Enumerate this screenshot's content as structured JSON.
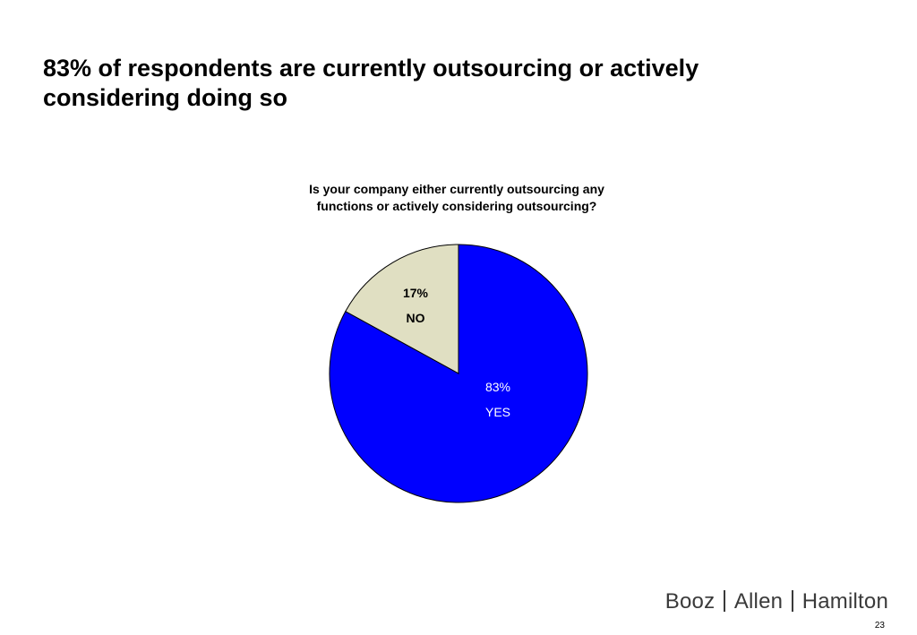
{
  "slide": {
    "title": "83% of respondents are currently outsourcing or actively considering doing so",
    "page_number": "23"
  },
  "logo": {
    "parts": [
      "Booz",
      "Allen",
      "Hamilton"
    ]
  },
  "chart_data": {
    "type": "pie",
    "title": "Is your company either currently outsourcing any\nfunctions or actively considering outsourcing?",
    "slices": [
      {
        "label": "YES",
        "value": 83,
        "display": "83%",
        "color": "#0000FF",
        "label_color": "#FFFFFF"
      },
      {
        "label": "NO",
        "value": 17,
        "display": "17%",
        "color": "#E0DFC2",
        "label_color": "#000000"
      }
    ],
    "start": "12 o'clock",
    "direction": "clockwise",
    "outline_color": "#000000",
    "legend": "none"
  }
}
